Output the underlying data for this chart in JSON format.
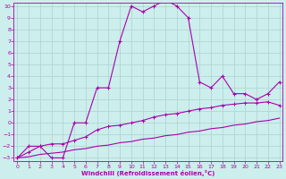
{
  "xlabel": "Windchill (Refroidissement éolien,°C)",
  "xlim": [
    0,
    23
  ],
  "ylim": [
    -3,
    10
  ],
  "xticks": [
    0,
    1,
    2,
    3,
    4,
    5,
    6,
    7,
    8,
    9,
    10,
    11,
    12,
    13,
    14,
    15,
    16,
    17,
    18,
    19,
    20,
    21,
    22,
    23
  ],
  "yticks": [
    -3,
    -2,
    -1,
    0,
    1,
    2,
    3,
    4,
    5,
    6,
    7,
    8,
    9,
    10
  ],
  "bg_color": "#cceeed",
  "line_color": "#aa00aa",
  "grid_color": "#aad4d0",
  "curve1_x": [
    0,
    1,
    2,
    3,
    4,
    5,
    6,
    7,
    8,
    9,
    10,
    11,
    12,
    13,
    14,
    15,
    16,
    17,
    18,
    19,
    20,
    21,
    22,
    23
  ],
  "curve1_y": [
    -3,
    -2,
    -2,
    -3,
    -3,
    0,
    0,
    3,
    3,
    7,
    10,
    9.5,
    10,
    10.5,
    10,
    9,
    3.5,
    3,
    4,
    2.5,
    2.5,
    2,
    2.5,
    3.5
  ],
  "curve2_x": [
    0,
    1,
    2,
    3,
    4,
    5,
    6,
    7,
    8,
    9,
    10,
    11,
    12,
    13,
    14,
    15,
    16,
    17,
    18,
    19,
    20,
    21,
    22,
    23
  ],
  "curve2_y": [
    -3,
    -2.5,
    -2,
    -1.8,
    -1.8,
    -1.5,
    -1.2,
    -0.6,
    -0.3,
    -0.2,
    0.0,
    0.2,
    0.5,
    0.7,
    0.8,
    1.0,
    1.2,
    1.3,
    1.5,
    1.6,
    1.7,
    1.7,
    1.8,
    1.5
  ],
  "curve3_x": [
    0,
    1,
    2,
    3,
    4,
    5,
    6,
    7,
    8,
    9,
    10,
    11,
    12,
    13,
    14,
    15,
    16,
    17,
    18,
    19,
    20,
    21,
    22,
    23
  ],
  "curve3_y": [
    -3,
    -2.9,
    -2.7,
    -2.6,
    -2.5,
    -2.3,
    -2.2,
    -2.0,
    -1.9,
    -1.7,
    -1.6,
    -1.4,
    -1.3,
    -1.1,
    -1.0,
    -0.8,
    -0.7,
    -0.5,
    -0.4,
    -0.2,
    -0.1,
    0.1,
    0.2,
    0.4
  ]
}
